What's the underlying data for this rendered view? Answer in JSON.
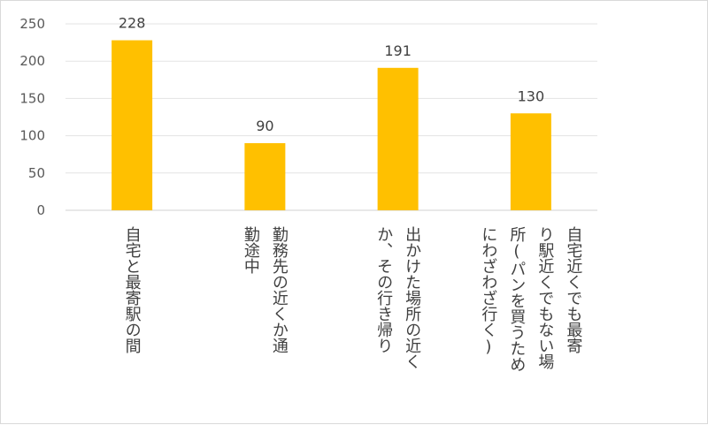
{
  "chart_data": {
    "type": "bar",
    "categories": [
      [
        "自宅と最寄駅の間"
      ],
      [
        "勤務先の近くか通",
        "勤途中"
      ],
      [
        "出かけた場所の近く",
        "か、その行き帰り"
      ],
      [
        "自宅近くでも最寄",
        "り駅近くでもない場",
        "所(パンを買うため",
        "にわざわざ行く)"
      ]
    ],
    "values": [
      228,
      90,
      191,
      130
    ],
    "data_labels": [
      "228",
      "90",
      "191",
      "130"
    ],
    "yticks": [
      "0",
      "50",
      "100",
      "150",
      "200",
      "250"
    ],
    "ylim": [
      0,
      250
    ],
    "bar_color": "#ffc000",
    "grid": true,
    "legend": "none"
  }
}
